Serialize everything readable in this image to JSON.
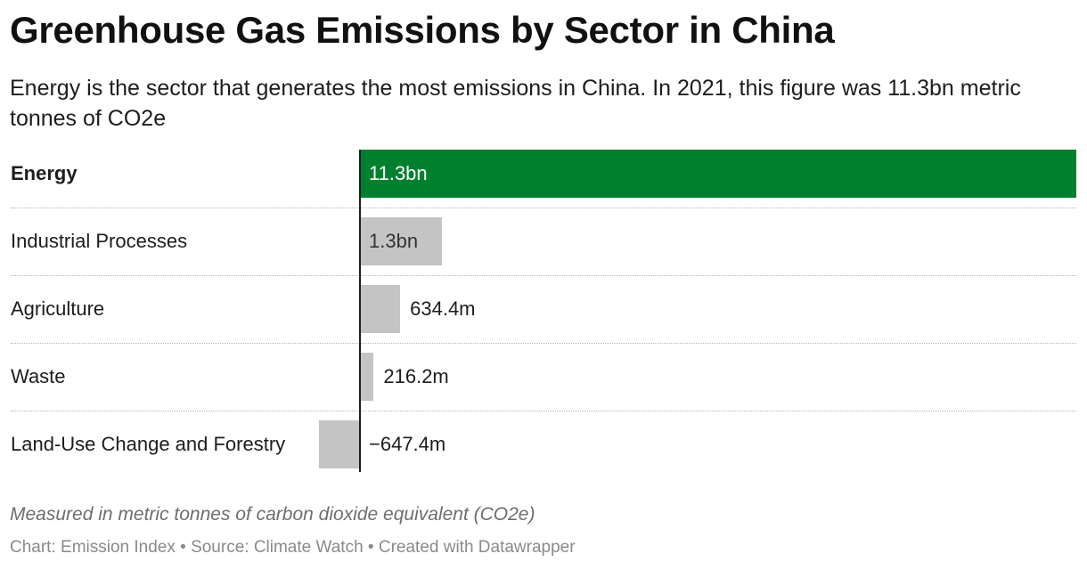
{
  "title": "Greenhouse Gas Emissions by Sector in China",
  "subtitle": "Energy is the sector that generates the most emissions in China. In 2021, this figure was 11.3bn metric tonnes of CO2e",
  "notes": "Measured in metric tonnes of carbon dioxide equivalent (CO2e)",
  "footer": "Chart: Emission Index • Source: Climate Watch • Created with Datawrapper",
  "colors": {
    "highlight": "#00802f",
    "default_bar": "#c4c4c4"
  },
  "chart_data": {
    "type": "bar",
    "orientation": "horizontal",
    "title": "Greenhouse Gas Emissions by Sector in China",
    "categories": [
      "Energy",
      "Industrial Processes",
      "Agriculture",
      "Waste",
      "Land-Use Change and Forestry"
    ],
    "values": [
      11.3,
      1.3,
      0.6344,
      0.2162,
      -0.6474
    ],
    "value_labels": [
      "11.3bn",
      "1.3bn",
      "634.4m",
      "216.2m",
      "−647.4m"
    ],
    "highlighted": [
      true,
      false,
      false,
      false,
      false
    ],
    "xlim": [
      -0.6474,
      11.3
    ],
    "grid": false,
    "legend": "none"
  }
}
